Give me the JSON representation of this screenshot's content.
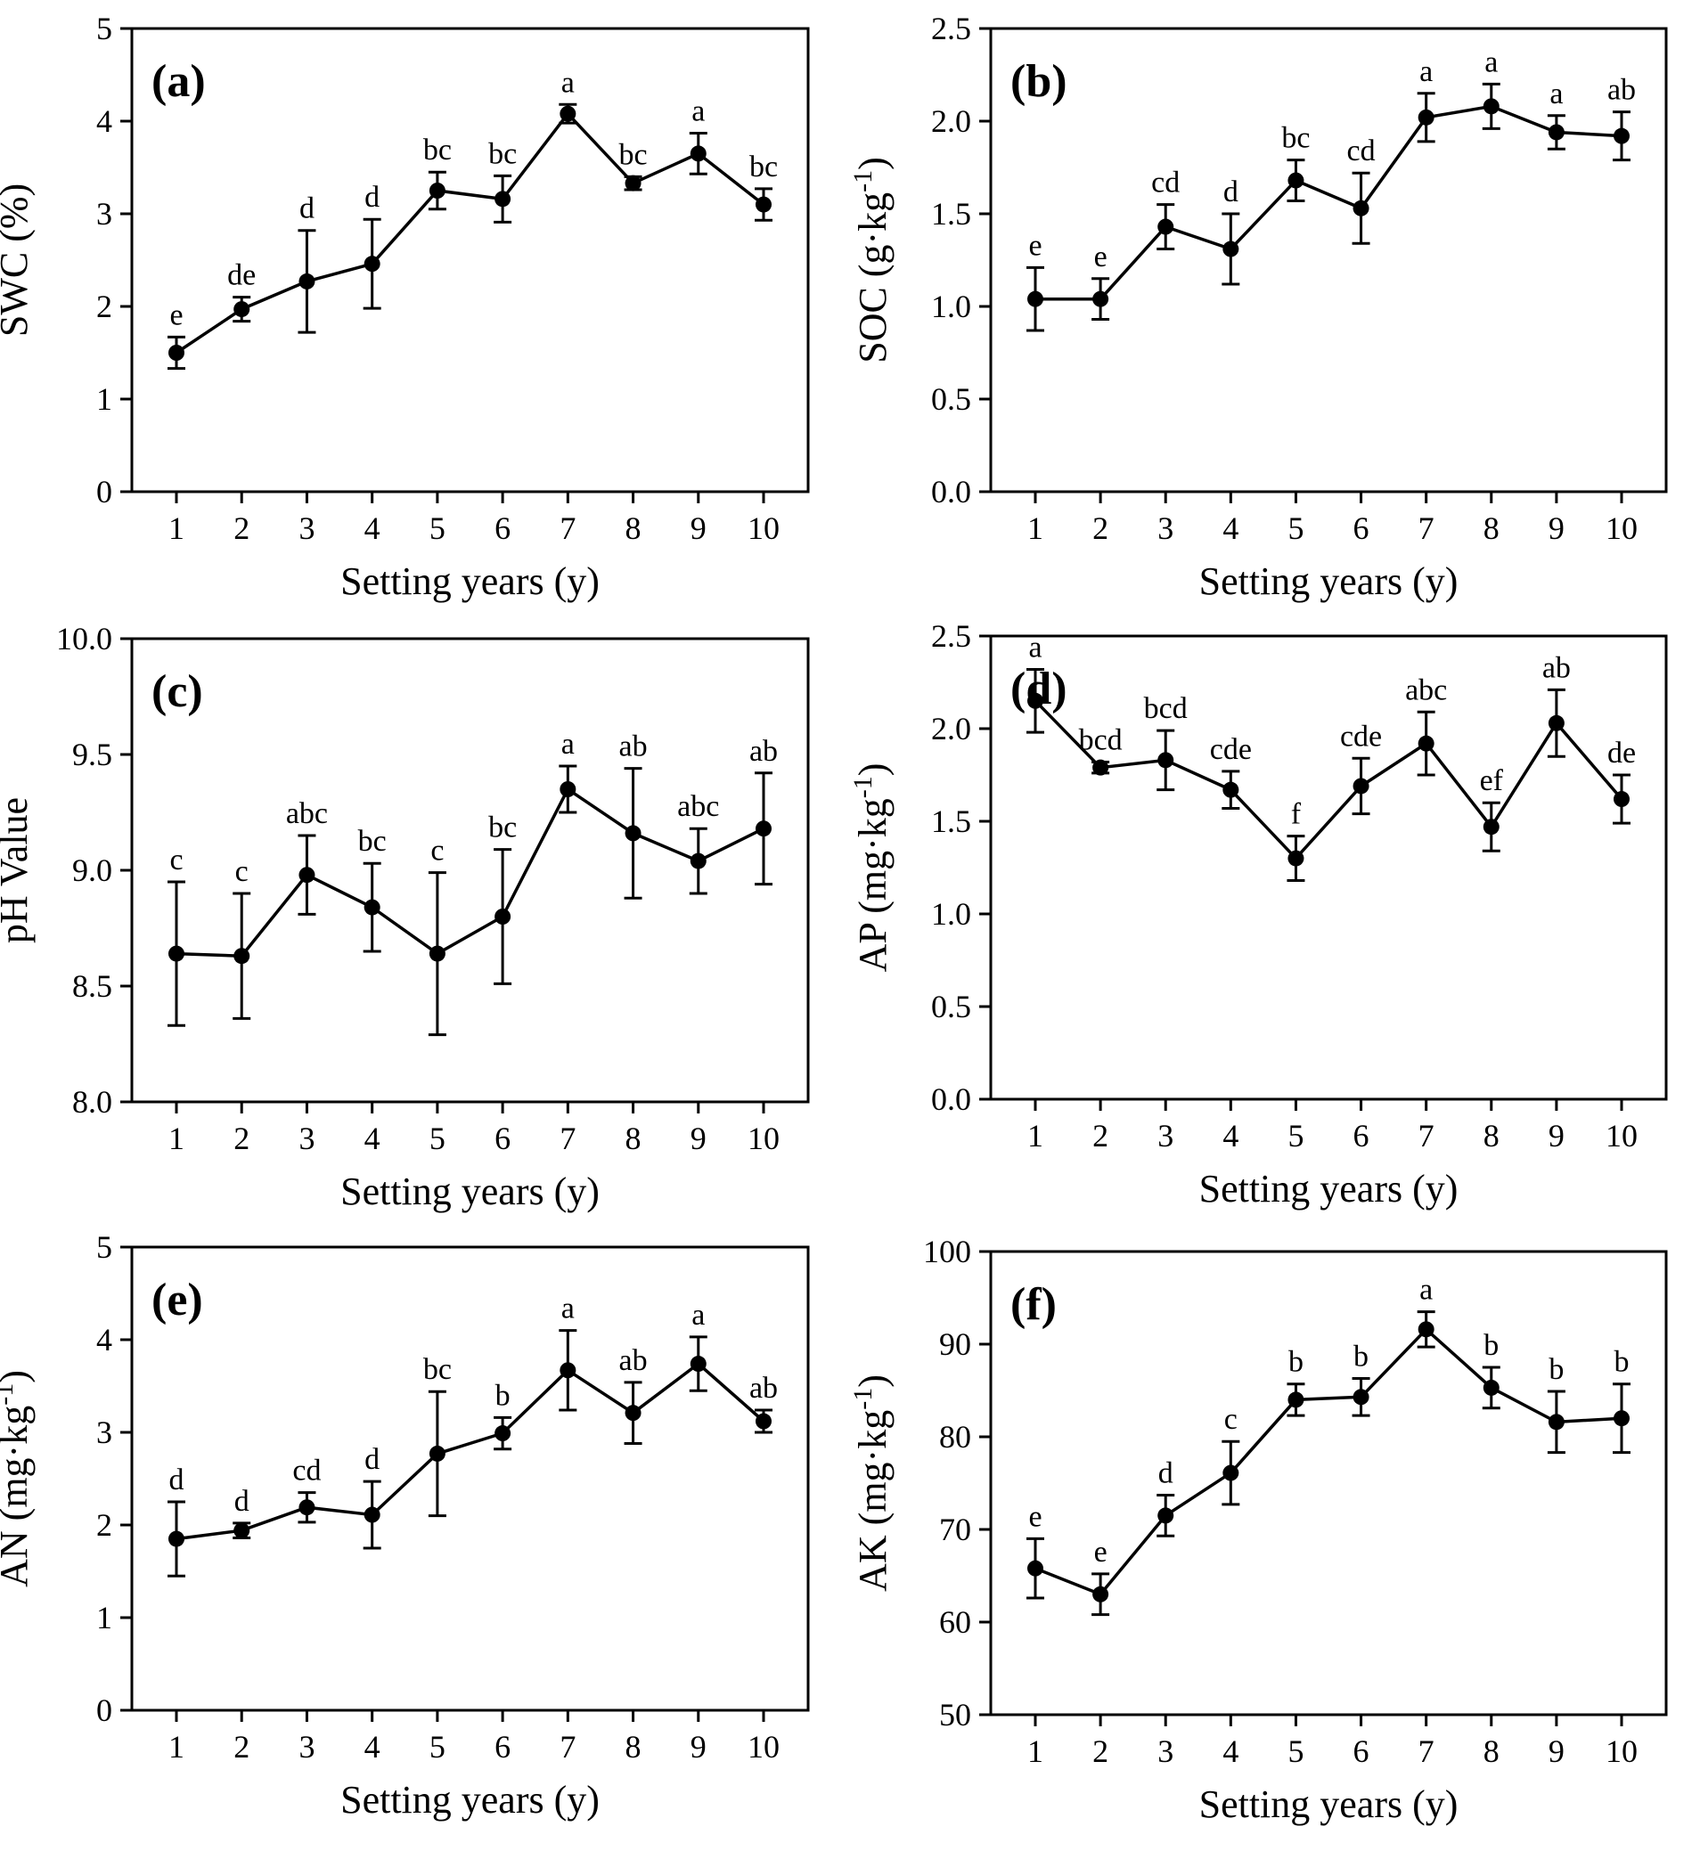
{
  "figure": {
    "title": ""
  },
  "chart_data": [
    {
      "type": "line",
      "panel_label": "(a)",
      "xlabel": "Setting years (y)",
      "ylabel": "SWC (%)",
      "ylim": [
        0,
        5
      ],
      "yticks": [
        0,
        1,
        2,
        3,
        4,
        5
      ],
      "ytick_labels": [
        "0",
        "1",
        "2",
        "3",
        "4",
        "5"
      ],
      "x": [
        1,
        2,
        3,
        4,
        5,
        6,
        7,
        8,
        9,
        10
      ],
      "xtick_labels": [
        "1",
        "2",
        "3",
        "4",
        "5",
        "6",
        "7",
        "8",
        "9",
        "10"
      ],
      "values": [
        1.5,
        1.97,
        2.27,
        2.46,
        3.25,
        3.16,
        4.08,
        3.33,
        3.65,
        3.1
      ],
      "errors": [
        0.17,
        0.13,
        0.55,
        0.48,
        0.2,
        0.25,
        0.1,
        0.07,
        0.22,
        0.17
      ],
      "letters": [
        "e",
        "de",
        "d",
        "d",
        "bc",
        "bc",
        "a",
        "bc",
        "a",
        "bc"
      ],
      "grid": false
    },
    {
      "type": "line",
      "panel_label": "(b)",
      "xlabel": "Setting years (y)",
      "ylabel": "SOC (g·kg⁻¹)",
      "ylim": [
        0,
        2.5
      ],
      "yticks": [
        0,
        0.5,
        1,
        1.5,
        2,
        2.5
      ],
      "ytick_labels": [
        "0.0",
        "0.5",
        "1.0",
        "1.5",
        "2.0",
        "2.5"
      ],
      "x": [
        1,
        2,
        3,
        4,
        5,
        6,
        7,
        8,
        9,
        10
      ],
      "xtick_labels": [
        "1",
        "2",
        "3",
        "4",
        "5",
        "6",
        "7",
        "8",
        "9",
        "10"
      ],
      "values": [
        1.04,
        1.04,
        1.43,
        1.31,
        1.68,
        1.53,
        2.02,
        2.08,
        1.94,
        1.92
      ],
      "errors": [
        0.17,
        0.11,
        0.12,
        0.19,
        0.11,
        0.19,
        0.13,
        0.12,
        0.09,
        0.13
      ],
      "letters": [
        "e",
        "e",
        "cd",
        "d",
        "bc",
        "cd",
        "a",
        "a",
        "a",
        "ab"
      ],
      "grid": false
    },
    {
      "type": "line",
      "panel_label": "(c)",
      "xlabel": "Setting years (y)",
      "ylabel": "pH Value",
      "ylim": [
        8,
        10
      ],
      "yticks": [
        8,
        8.5,
        9,
        9.5,
        10
      ],
      "ytick_labels": [
        "8.0",
        "8.5",
        "9.0",
        "9.5",
        "10.0"
      ],
      "x": [
        1,
        2,
        3,
        4,
        5,
        6,
        7,
        8,
        9,
        10
      ],
      "xtick_labels": [
        "1",
        "2",
        "3",
        "4",
        "5",
        "6",
        "7",
        "8",
        "9",
        "10"
      ],
      "values": [
        8.64,
        8.63,
        8.98,
        8.84,
        8.64,
        8.8,
        9.35,
        9.16,
        9.04,
        9.18
      ],
      "errors": [
        0.31,
        0.27,
        0.17,
        0.19,
        0.35,
        0.29,
        0.1,
        0.28,
        0.14,
        0.24
      ],
      "letters": [
        "c",
        "c",
        "abc",
        "bc",
        "c",
        "bc",
        "a",
        "ab",
        "abc",
        "ab"
      ],
      "grid": false
    },
    {
      "type": "line",
      "panel_label": "(d)",
      "xlabel": "Setting years (y)",
      "ylabel": "AP (mg·kg⁻¹)",
      "ylim": [
        0,
        2.5
      ],
      "yticks": [
        0,
        0.5,
        1,
        1.5,
        2,
        2.5
      ],
      "ytick_labels": [
        "0.0",
        "0.5",
        "1.0",
        "1.5",
        "2.0",
        "2.5"
      ],
      "x": [
        1,
        2,
        3,
        4,
        5,
        6,
        7,
        8,
        9,
        10
      ],
      "xtick_labels": [
        "1",
        "2",
        "3",
        "4",
        "5",
        "6",
        "7",
        "8",
        "9",
        "10"
      ],
      "values": [
        2.15,
        1.79,
        1.83,
        1.67,
        1.3,
        1.69,
        1.92,
        1.47,
        2.03,
        1.62
      ],
      "errors": [
        0.17,
        0.03,
        0.16,
        0.1,
        0.12,
        0.15,
        0.17,
        0.13,
        0.18,
        0.13
      ],
      "letters": [
        "a",
        "bcd",
        "bcd",
        "cde",
        "f",
        "cde",
        "abc",
        "ef",
        "ab",
        "de"
      ],
      "grid": false
    },
    {
      "type": "line",
      "panel_label": "(e)",
      "xlabel": "Setting years (y)",
      "ylabel": "AN (mg·kg⁻¹)",
      "ylim": [
        0,
        5
      ],
      "yticks": [
        0,
        1,
        2,
        3,
        4,
        5
      ],
      "ytick_labels": [
        "0",
        "1",
        "2",
        "3",
        "4",
        "5"
      ],
      "x": [
        1,
        2,
        3,
        4,
        5,
        6,
        7,
        8,
        9,
        10
      ],
      "xtick_labels": [
        "1",
        "2",
        "3",
        "4",
        "5",
        "6",
        "7",
        "8",
        "9",
        "10"
      ],
      "values": [
        1.85,
        1.94,
        2.19,
        2.11,
        2.77,
        2.99,
        3.67,
        3.21,
        3.74,
        3.12
      ],
      "errors": [
        0.4,
        0.08,
        0.16,
        0.36,
        0.67,
        0.17,
        0.43,
        0.33,
        0.29,
        0.12
      ],
      "letters": [
        "d",
        "d",
        "cd",
        "d",
        "bc",
        "b",
        "a",
        "ab",
        "a",
        "ab"
      ],
      "grid": false
    },
    {
      "type": "line",
      "panel_label": "(f)",
      "xlabel": "Setting years (y)",
      "ylabel": "AK (mg·kg⁻¹)",
      "ylim": [
        50,
        100
      ],
      "yticks": [
        50,
        60,
        70,
        80,
        90,
        100
      ],
      "ytick_labels": [
        "50",
        "60",
        "70",
        "80",
        "90",
        "100"
      ],
      "x": [
        1,
        2,
        3,
        4,
        5,
        6,
        7,
        8,
        9,
        10
      ],
      "xtick_labels": [
        "1",
        "2",
        "3",
        "4",
        "5",
        "6",
        "7",
        "8",
        "9",
        "10"
      ],
      "values": [
        65.8,
        63.0,
        71.5,
        76.1,
        84.0,
        84.3,
        91.6,
        85.3,
        81.6,
        82.0
      ],
      "errors": [
        3.2,
        2.2,
        2.2,
        3.4,
        1.7,
        2.0,
        1.9,
        2.2,
        3.3,
        3.7
      ],
      "letters": [
        "e",
        "e",
        "d",
        "c",
        "b",
        "b",
        "a",
        "b",
        "b",
        "b"
      ],
      "grid": false
    }
  ]
}
